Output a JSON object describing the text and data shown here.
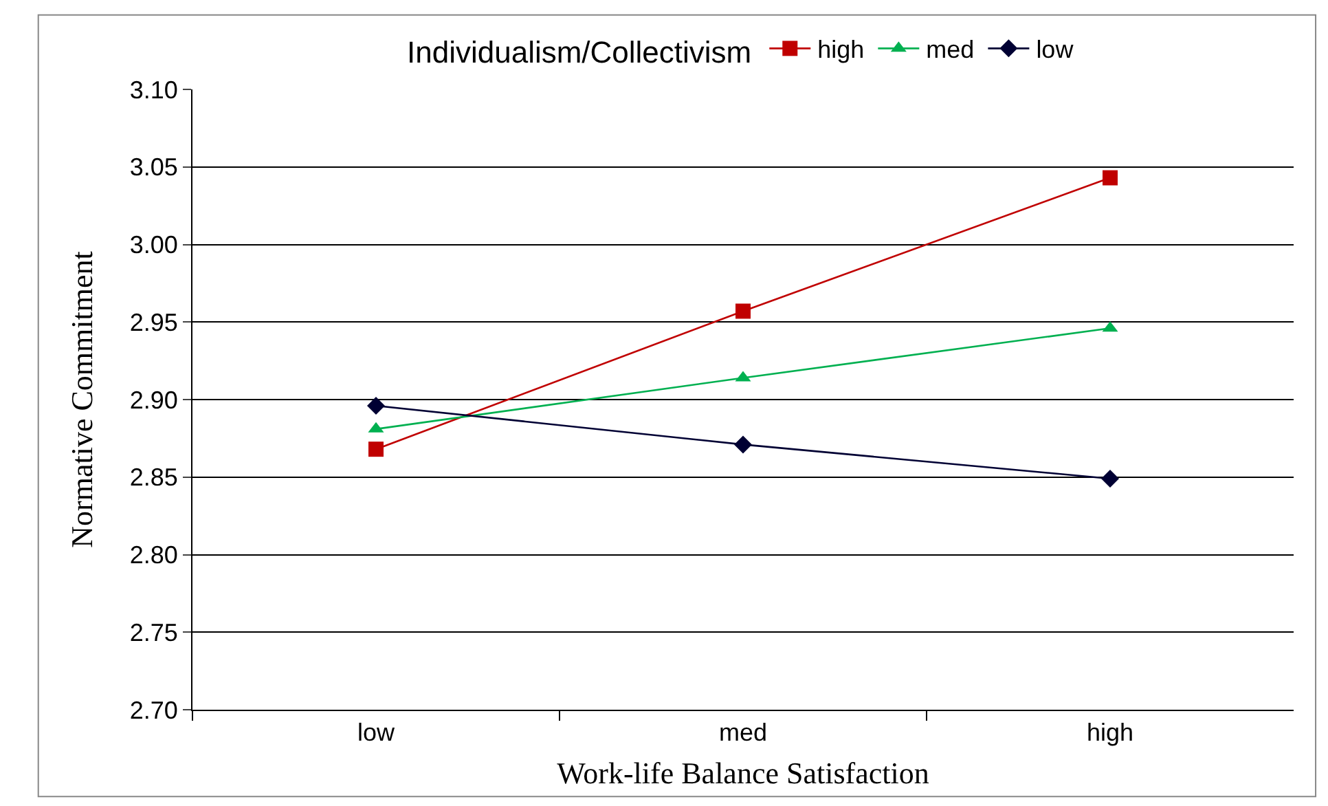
{
  "chart_data": {
    "type": "line",
    "xlabel": "Work-life Balance Satisfaction",
    "ylabel": "Normative Commitment",
    "legend_title": "Individualism/Collectivism",
    "categories": [
      "low",
      "med",
      "high"
    ],
    "series": [
      {
        "name": "high",
        "color": "#c00000",
        "marker": "square",
        "values": [
          2.868,
          2.957,
          3.043
        ]
      },
      {
        "name": "med",
        "color": "#00b050",
        "marker": "triangle",
        "values": [
          2.881,
          2.914,
          2.946
        ]
      },
      {
        "name": "low",
        "color": "#000033",
        "marker": "diamond",
        "values": [
          2.896,
          2.871,
          2.849
        ]
      }
    ],
    "ylim": [
      2.7,
      3.1
    ],
    "yticks": [
      {
        "value": 2.7,
        "label": "2.70"
      },
      {
        "value": 2.75,
        "label": "2.75"
      },
      {
        "value": 2.8,
        "label": "2.80"
      },
      {
        "value": 2.85,
        "label": "2.85"
      },
      {
        "value": 2.9,
        "label": "2.90"
      },
      {
        "value": 2.95,
        "label": "2.95"
      },
      {
        "value": 3.0,
        "label": "3.00"
      },
      {
        "value": 3.05,
        "label": "3.05"
      },
      {
        "value": 3.1,
        "label": "3.10"
      }
    ],
    "grid": "y",
    "legend": "top",
    "line_style": "solid"
  }
}
